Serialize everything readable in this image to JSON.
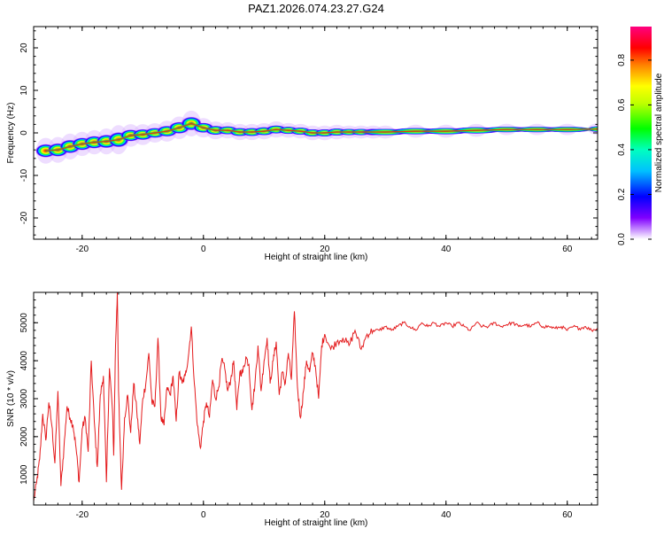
{
  "title": "PAZ1.2026.074.23.27.G24",
  "chart_data": [
    {
      "type": "heatmap",
      "xlabel": "Height of straight line (km)",
      "ylabel": "Frequency (Hz)",
      "xlim": [
        -28,
        65
      ],
      "ylim": [
        -25,
        25
      ],
      "x_ticks": [
        -20,
        0,
        20,
        40,
        60
      ],
      "y_ticks": [
        -20,
        -10,
        0,
        10,
        20
      ],
      "x_minor_step": 2,
      "y_minor_step": 2,
      "colorbar": {
        "label": "Normalized spectral amplitude",
        "range": [
          0,
          0.95
        ],
        "ticks": [
          0.0,
          0.2,
          0.4,
          0.6,
          0.8
        ]
      },
      "ridge": {
        "x": [
          -26,
          -24,
          -22,
          -20,
          -18,
          -16,
          -14,
          -12,
          -10,
          -8,
          -6,
          -4,
          -2,
          0,
          2,
          4,
          6,
          8,
          10,
          12,
          14,
          16,
          18,
          20,
          22,
          24,
          26,
          28,
          30,
          35,
          40,
          45,
          50,
          55,
          60,
          65
        ],
        "frequency": [
          -4.2,
          -4.0,
          -3.2,
          -2.6,
          -2.2,
          -2.0,
          -1.6,
          -0.6,
          -0.4,
          0.0,
          0.4,
          1.2,
          2.2,
          1.2,
          0.6,
          0.6,
          0.2,
          0.2,
          0.4,
          0.8,
          0.6,
          0.4,
          0.0,
          0.0,
          0.2,
          0.2,
          0.2,
          0.2,
          0.2,
          0.4,
          0.4,
          0.6,
          0.8,
          0.8,
          0.8,
          0.9
        ],
        "spread": [
          1.6,
          1.6,
          1.6,
          1.5,
          1.5,
          1.6,
          1.8,
          1.4,
          1.3,
          1.2,
          1.3,
          1.4,
          1.6,
          1.2,
          1.1,
          1.0,
          1.0,
          1.0,
          1.0,
          1.0,
          0.9,
          0.9,
          0.9,
          0.9,
          0.9,
          0.8,
          0.8,
          0.8,
          0.8,
          0.8,
          0.8,
          0.8,
          0.7,
          0.7,
          0.7,
          0.7
        ]
      }
    },
    {
      "type": "line",
      "xlabel": "Height of straight line (km)",
      "ylabel": "SNR (10 * v/v)",
      "xlim": [
        -28,
        65
      ],
      "ylim": [
        200,
        5800
      ],
      "x_ticks": [
        -20,
        0,
        20,
        40,
        60
      ],
      "y_ticks": [
        1000,
        2000,
        3000,
        4000,
        5000
      ],
      "series": [
        {
          "color": "#e41a1c",
          "x": [
            -28,
            -27.5,
            -27,
            -26.5,
            -26,
            -25.5,
            -25,
            -24.5,
            -24,
            -23.5,
            -23,
            -22.5,
            -22,
            -21.5,
            -21,
            -20.5,
            -20,
            -19.5,
            -19,
            -18.5,
            -18,
            -17.5,
            -17,
            -16.5,
            -16,
            -15.5,
            -15,
            -14.8,
            -14.5,
            -14.2,
            -14,
            -13.5,
            -13,
            -12.5,
            -12,
            -11.5,
            -11,
            -10.5,
            -10,
            -9.5,
            -9,
            -8.5,
            -8,
            -7.5,
            -7,
            -6.5,
            -6,
            -5.5,
            -5,
            -4.5,
            -4,
            -3.5,
            -3,
            -2.5,
            -2,
            -1.5,
            -1,
            -0.5,
            0,
            0.5,
            1,
            1.5,
            2,
            2.5,
            3,
            3.5,
            4,
            4.5,
            5,
            5.5,
            6,
            6.5,
            7,
            7.5,
            8,
            8.5,
            9,
            9.5,
            10,
            10.5,
            11,
            11.5,
            12,
            12.5,
            13,
            13.5,
            14,
            14.5,
            15,
            15.5,
            16,
            16.5,
            17,
            17.5,
            18,
            18.5,
            19,
            19.5,
            20,
            21,
            22,
            23,
            24,
            25,
            26,
            27,
            28,
            29,
            30,
            31,
            32,
            33,
            34,
            35,
            36,
            37,
            38,
            39,
            40,
            41,
            42,
            43,
            44,
            45,
            46,
            47,
            48,
            49,
            50,
            51,
            52,
            53,
            54,
            55,
            56,
            57,
            58,
            59,
            60,
            61,
            62,
            63,
            64,
            65
          ],
          "y": [
            300,
            800,
            1400,
            2600,
            1900,
            2900,
            2300,
            1300,
            3200,
            700,
            1700,
            2800,
            2500,
            2300,
            1700,
            800,
            2200,
            2500,
            1600,
            4000,
            2400,
            1200,
            3100,
            3600,
            800,
            3800,
            2700,
            1500,
            4400,
            5800,
            3200,
            600,
            2500,
            3100,
            2100,
            3400,
            2700,
            1800,
            3000,
            3400,
            4200,
            2900,
            2800,
            4600,
            2500,
            2300,
            3300,
            3100,
            3600,
            2400,
            3700,
            3400,
            3600,
            4100,
            4900,
            3400,
            2300,
            1700,
            2400,
            2900,
            2500,
            3500,
            3000,
            3300,
            4000,
            3800,
            3200,
            3500,
            4000,
            2700,
            3700,
            3700,
            4100,
            3900,
            2700,
            3400,
            4400,
            3200,
            4000,
            4600,
            3400,
            4000,
            4500,
            3100,
            3700,
            3400,
            4200,
            3500,
            5300,
            3300,
            2500,
            3200,
            4000,
            3700,
            4200,
            3800,
            3000,
            4400,
            4700,
            4300,
            4500,
            4600,
            4400,
            4800,
            4300,
            4700,
            4800,
            4800,
            4900,
            4800,
            4900,
            5000,
            4900,
            4800,
            5000,
            4900,
            5000,
            4900,
            5000,
            4900,
            5000,
            4900,
            4800,
            5000,
            4900,
            4900,
            5000,
            4900,
            4950,
            5000,
            4900,
            4950,
            4900,
            5000,
            4900,
            4900,
            4850,
            4900,
            4800,
            4900,
            4850,
            4900,
            4800,
            4850
          ]
        }
      ]
    }
  ]
}
